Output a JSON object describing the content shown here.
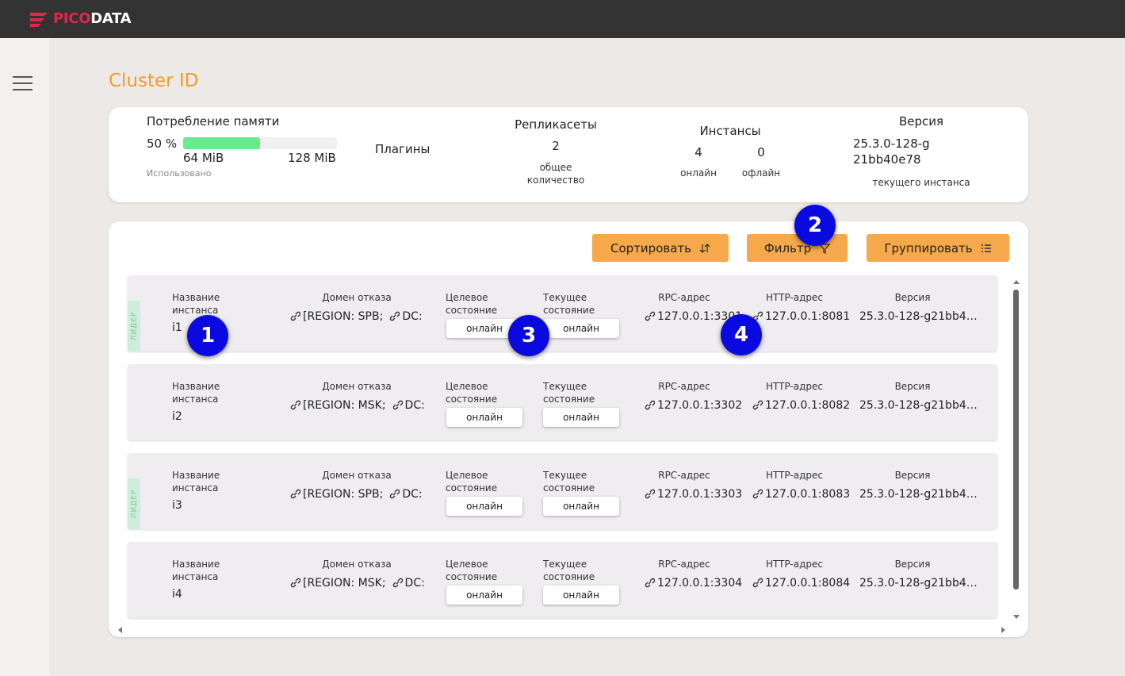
{
  "header": {
    "logo": {
      "first": "PICO",
      "second": "DATA"
    }
  },
  "page_title": "Cluster ID",
  "summary": {
    "memory": {
      "title": "Потребление памяти",
      "usage": {
        "value": 50,
        "label": "50 %"
      },
      "used": "64 MiB",
      "total": "128 MiB",
      "caption": "Использовано"
    },
    "plugins": {
      "title": "Плагины"
    },
    "replicasets": {
      "title": "Репликасеты",
      "count": "2",
      "caption": "общее количество"
    },
    "instances": {
      "title": "Инстансы",
      "online": "4",
      "online_label": "онлайн",
      "offline": "0",
      "offline_label": "офлайн"
    },
    "version": {
      "title": "Версия",
      "value": "25.3.0-128-g21bb40e78",
      "caption": "текущего инстанса"
    }
  },
  "toolbar": {
    "buttons": [
      "Сортировать",
      "Фильтр",
      "Группировать"
    ]
  },
  "row_columns": [
    "Название инстанса",
    "Домен отказа",
    "Целевое состояние",
    "Текущее состояние",
    "RPC-адрес",
    "HTTP-адрес",
    "Версия"
  ],
  "instances": [
    {
      "leader": "ЛИДЕР",
      "name": "i1",
      "domain": [
        "[REGION: SPB;",
        "DC:"
      ],
      "target_state": "онлайн",
      "current_state": "онлайн",
      "rpc": "127.0.0.1:3301",
      "http": "127.0.0.1:8081",
      "version": "25.3.0-128-g21bb4…"
    },
    {
      "name": "i2",
      "domain": [
        "[REGION: MSK;",
        "DC:"
      ],
      "target_state": "онлайн",
      "current_state": "онлайн",
      "rpc": "127.0.0.1:3302",
      "http": "127.0.0.1:8082",
      "version": "25.3.0-128-g21bb4…"
    },
    {
      "leader": "ЛИДЕР",
      "name": "i3",
      "domain": [
        "[REGION: SPB;",
        "DC:"
      ],
      "target_state": "онлайн",
      "current_state": "онлайн",
      "rpc": "127.0.0.1:3303",
      "http": "127.0.0.1:8083",
      "version": "25.3.0-128-g21bb4…"
    },
    {
      "name": "i4",
      "domain": [
        "[REGION: MSK;",
        "DC:"
      ],
      "target_state": "онлайн",
      "current_state": "онлайн",
      "rpc": "127.0.0.1:3304",
      "http": "127.0.0.1:8084",
      "version": "25.3.0-128-g21bb4…"
    }
  ],
  "markers": [
    "1",
    "2",
    "3",
    "4"
  ]
}
